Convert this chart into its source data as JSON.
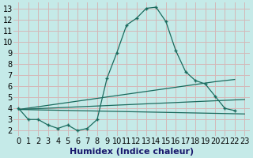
{
  "xlabel": "Humidex (Indice chaleur)",
  "background_color": "#c5eae8",
  "grid_color": "#d4b8b8",
  "line_color": "#1a6b5e",
  "xlim_min": -0.5,
  "xlim_max": 23.5,
  "ylim_min": 1.5,
  "ylim_max": 13.5,
  "xticks": [
    0,
    1,
    2,
    3,
    4,
    5,
    6,
    7,
    8,
    9,
    10,
    11,
    12,
    13,
    14,
    15,
    16,
    17,
    18,
    19,
    20,
    21,
    22,
    23
  ],
  "yticks": [
    2,
    3,
    4,
    5,
    6,
    7,
    8,
    9,
    10,
    11,
    12,
    13
  ],
  "main_x": [
    0,
    1,
    2,
    3,
    4,
    5,
    6,
    7,
    8,
    9,
    10,
    11,
    12,
    13,
    14,
    15,
    16,
    17,
    18,
    19,
    20,
    21,
    22
  ],
  "main_y": [
    4.0,
    3.0,
    3.0,
    2.5,
    2.2,
    2.5,
    2.0,
    2.2,
    3.0,
    6.7,
    9.0,
    11.5,
    12.1,
    13.0,
    13.1,
    11.8,
    9.2,
    7.3,
    6.5,
    6.2,
    5.1,
    4.0,
    3.8
  ],
  "line1_x": [
    0,
    23
  ],
  "line1_y": [
    3.9,
    3.5
  ],
  "line2_x": [
    0,
    23
  ],
  "line2_y": [
    3.9,
    4.8
  ],
  "line3_x": [
    0,
    20,
    22
  ],
  "line3_y": [
    3.9,
    6.4,
    6.6
  ],
  "xlabel_color": "#1a1a6e",
  "xlabel_fontsize": 8,
  "tick_fontsize": 7
}
